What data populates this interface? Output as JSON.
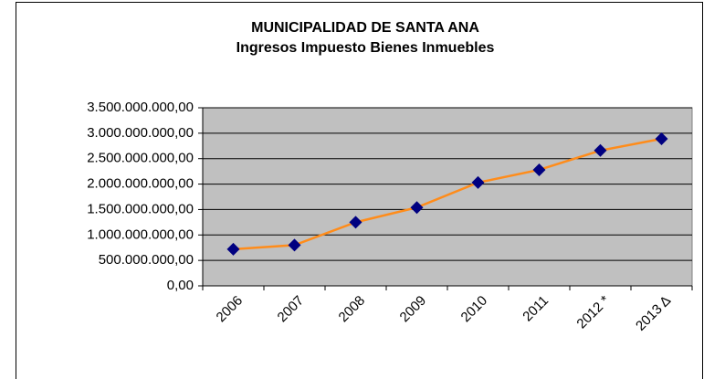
{
  "chart_data": {
    "type": "line",
    "title": "MUNICIPALIDAD DE SANTA ANA",
    "subtitle": "Ingresos Impuesto Bienes Inmuebles",
    "categories": [
      "2006",
      "2007",
      "2008",
      "2009",
      "2010",
      "2011",
      "2012 *",
      "2013 Δ"
    ],
    "series": [
      {
        "name": "Ingresos",
        "color": "#ff8c1a",
        "marker_color": "#000080",
        "values": [
          720000000,
          800000000,
          1250000000,
          1540000000,
          2030000000,
          2280000000,
          2660000000,
          2890000000
        ]
      }
    ],
    "ylim": [
      0,
      3500000000
    ],
    "yticks": [
      {
        "value": 0,
        "label": "0,00"
      },
      {
        "value": 500000000,
        "label": "500.000.000,00"
      },
      {
        "value": 1000000000,
        "label": "1.000.000.000,00"
      },
      {
        "value": 1500000000,
        "label": "1.500.000.000,00"
      },
      {
        "value": 2000000000,
        "label": "2.000.000.000,00"
      },
      {
        "value": 2500000000,
        "label": "2.500.000.000,00"
      },
      {
        "value": 3000000000,
        "label": "3.000.000.000,00"
      },
      {
        "value": 3500000000,
        "label": "3.500.000.000,00"
      }
    ],
    "grid": true,
    "plot_background": "#c0c0c0"
  }
}
